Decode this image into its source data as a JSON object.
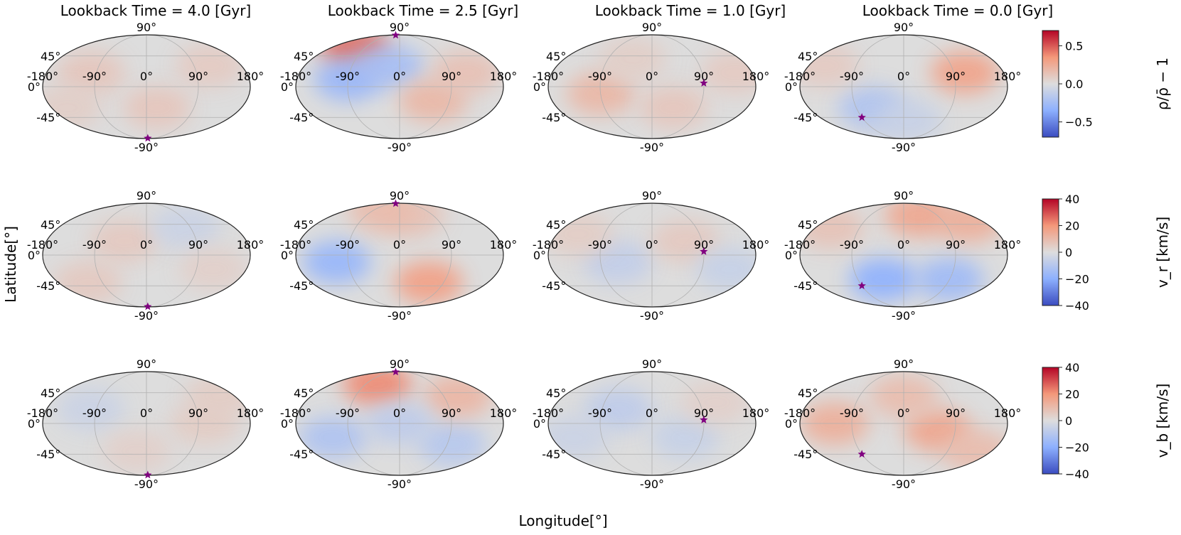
{
  "chart_data": {
    "type": "heatmap",
    "projection": "mollweide",
    "xlabel": "Longitude[°]",
    "ylabel": "Latitude[°]",
    "column_titles": [
      "Lookback Time = 4.0 [Gyr]",
      "Lookback Time = 2.5 [Gyr]",
      "Lookback Time = 1.0 [Gyr]",
      "Lookback Time = 0.0 [Gyr]"
    ],
    "lookback_times_gyr": [
      4.0,
      2.5,
      1.0,
      0.0
    ],
    "lon_ticks": [
      -180,
      -90,
      0,
      90,
      180
    ],
    "lat_ticks": [
      90,
      45,
      0,
      -45,
      -90
    ],
    "lon_tick_labels": [
      "-180°",
      "-90°",
      "0°",
      "90°",
      "180°"
    ],
    "lat_tick_labels": [
      "90°",
      "45°",
      "0°",
      "-45°",
      "-90°"
    ],
    "grid": true,
    "star_color": "#800080",
    "star_markers": [
      {
        "lon": 20,
        "lat": -88
      },
      {
        "lon": -60,
        "lat": 88
      },
      {
        "lon": 90,
        "lat": 5
      },
      {
        "lon": -90,
        "lat": -45
      }
    ],
    "rows": [
      {
        "quantity": "density_contrast",
        "colorbar_label": "ρ/ρ̄ − 1",
        "vmin": -0.7,
        "vmax": 0.7,
        "colorbar_ticks": [
          0.5,
          0.0,
          -0.5
        ],
        "colorbar_tick_labels": [
          "0.5",
          "0.0",
          "−0.5"
        ],
        "panels": [
          {
            "blobs": [
              {
                "lon": -100,
                "lat": 20,
                "amp": 0.12
              },
              {
                "lon": 120,
                "lat": 30,
                "amp": 0.1
              },
              {
                "lon": 20,
                "lat": -30,
                "amp": 0.12
              },
              {
                "lon": -150,
                "lat": -30,
                "amp": 0.08
              }
            ]
          },
          {
            "blobs": [
              {
                "lon": -120,
                "lat": 60,
                "amp": 0.45
              },
              {
                "lon": -90,
                "lat": 10,
                "amp": -0.3
              },
              {
                "lon": -20,
                "lat": 30,
                "amp": -0.25
              },
              {
                "lon": 60,
                "lat": -20,
                "amp": 0.2
              },
              {
                "lon": 120,
                "lat": 20,
                "amp": 0.15
              }
            ]
          },
          {
            "blobs": [
              {
                "lon": -90,
                "lat": -10,
                "amp": 0.2
              },
              {
                "lon": 40,
                "lat": -30,
                "amp": 0.12
              },
              {
                "lon": 150,
                "lat": 20,
                "amp": 0.1
              },
              {
                "lon": -40,
                "lat": 40,
                "amp": 0.08
              }
            ]
          },
          {
            "blobs": [
              {
                "lon": 110,
                "lat": 20,
                "amp": 0.3
              },
              {
                "lon": -60,
                "lat": -30,
                "amp": -0.2
              },
              {
                "lon": -150,
                "lat": 30,
                "amp": 0.1
              },
              {
                "lon": 10,
                "lat": -50,
                "amp": -0.1
              }
            ]
          }
        ]
      },
      {
        "quantity": "radial_velocity",
        "colorbar_label": "v_r [km/s]",
        "vmin": -40,
        "vmax": 40,
        "colorbar_ticks": [
          40,
          20,
          0,
          -20,
          -40
        ],
        "colorbar_tick_labels": [
          "40",
          "20",
          "0",
          "−20",
          "−40"
        ],
        "panels": [
          {
            "blobs": [
              {
                "lon": -40,
                "lat": 20,
                "amp": 6
              },
              {
                "lon": 80,
                "lat": 40,
                "amp": -5
              },
              {
                "lon": -120,
                "lat": -40,
                "amp": 6
              },
              {
                "lon": 120,
                "lat": -20,
                "amp": 4
              }
            ]
          },
          {
            "blobs": [
              {
                "lon": -110,
                "lat": -10,
                "amp": -18
              },
              {
                "lon": 60,
                "lat": -40,
                "amp": 18
              },
              {
                "lon": 30,
                "lat": 60,
                "amp": 8
              },
              {
                "lon": -60,
                "lat": 70,
                "amp": 10
              }
            ]
          },
          {
            "blobs": [
              {
                "lon": -60,
                "lat": -10,
                "amp": -7
              },
              {
                "lon": 60,
                "lat": 20,
                "amp": 6
              },
              {
                "lon": 140,
                "lat": -20,
                "amp": -6
              },
              {
                "lon": -140,
                "lat": 30,
                "amp": 5
              }
            ]
          },
          {
            "blobs": [
              {
                "lon": -40,
                "lat": -35,
                "amp": -20
              },
              {
                "lon": 90,
                "lat": -35,
                "amp": -16
              },
              {
                "lon": 40,
                "lat": 60,
                "amp": 16
              },
              {
                "lon": 150,
                "lat": 50,
                "amp": 14
              },
              {
                "lon": -150,
                "lat": 40,
                "amp": 8
              }
            ]
          }
        ]
      },
      {
        "quantity": "latitudinal_velocity",
        "colorbar_label": "v_b [km/s]",
        "vmin": -40,
        "vmax": 40,
        "colorbar_ticks": [
          40,
          20,
          0,
          -20,
          -40
        ],
        "colorbar_tick_labels": [
          "40",
          "20",
          "0",
          "−20",
          "−40"
        ],
        "panels": [
          {
            "blobs": [
              {
                "lon": -100,
                "lat": 20,
                "amp": -5
              },
              {
                "lon": 100,
                "lat": 0,
                "amp": 5
              },
              {
                "lon": -20,
                "lat": -40,
                "amp": 4
              },
              {
                "lon": 150,
                "lat": 40,
                "amp": 5
              }
            ]
          },
          {
            "blobs": [
              {
                "lon": -60,
                "lat": 60,
                "amp": 22
              },
              {
                "lon": -120,
                "lat": -20,
                "amp": -12
              },
              {
                "lon": 100,
                "lat": -30,
                "amp": -10
              },
              {
                "lon": 120,
                "lat": 40,
                "amp": 12
              },
              {
                "lon": 0,
                "lat": 0,
                "amp": -8
              }
            ]
          },
          {
            "blobs": [
              {
                "lon": -60,
                "lat": 20,
                "amp": -8
              },
              {
                "lon": 60,
                "lat": -20,
                "amp": -6
              },
              {
                "lon": 120,
                "lat": 30,
                "amp": 4
              },
              {
                "lon": -140,
                "lat": -20,
                "amp": -5
              }
            ]
          },
          {
            "blobs": [
              {
                "lon": -120,
                "lat": 0,
                "amp": 14
              },
              {
                "lon": 60,
                "lat": -10,
                "amp": 16
              },
              {
                "lon": 0,
                "lat": 40,
                "amp": 10
              },
              {
                "lon": 150,
                "lat": -40,
                "amp": 10
              }
            ]
          }
        ]
      }
    ]
  }
}
